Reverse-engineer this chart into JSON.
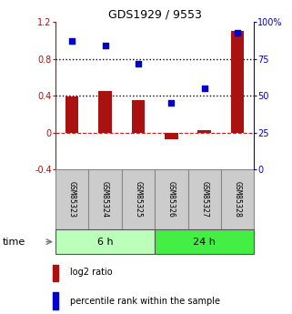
{
  "title": "GDS1929 / 9553",
  "samples": [
    "GSM85323",
    "GSM85324",
    "GSM85325",
    "GSM85326",
    "GSM85327",
    "GSM85328"
  ],
  "log2_ratio": [
    0.39,
    0.45,
    0.35,
    -0.07,
    0.03,
    1.1
  ],
  "percentile_rank": [
    87,
    84,
    72,
    45,
    55,
    93
  ],
  "bar_color": "#aa1111",
  "dot_color": "#0000cc",
  "ylim_left": [
    -0.4,
    1.2
  ],
  "ylim_right": [
    0,
    100
  ],
  "yticks_left": [
    -0.4,
    0.0,
    0.4,
    0.8,
    1.2
  ],
  "yticks_right": [
    0,
    25,
    50,
    75,
    100
  ],
  "ytick_labels_left": [
    "-0.4",
    "0",
    "0.4",
    "0.8",
    "1.2"
  ],
  "ytick_labels_right": [
    "0",
    "25",
    "50",
    "75",
    "100%"
  ],
  "hlines": [
    0.4,
    0.8
  ],
  "zero_line_color": "#cc2222",
  "hline_color": "#000000",
  "groups": [
    {
      "label": "6 h",
      "indices": [
        0,
        1,
        2
      ],
      "color_light": "#bbffbb",
      "color_dark": "#44dd44"
    },
    {
      "label": "24 h",
      "indices": [
        3,
        4,
        5
      ],
      "color_light": "#44dd44",
      "color_dark": "#22bb22"
    }
  ],
  "time_label": "time",
  "legend_bar_label": "log2 ratio",
  "legend_dot_label": "percentile rank within the sample",
  "fig_width": 3.21,
  "fig_height": 3.45,
  "dpi": 100
}
